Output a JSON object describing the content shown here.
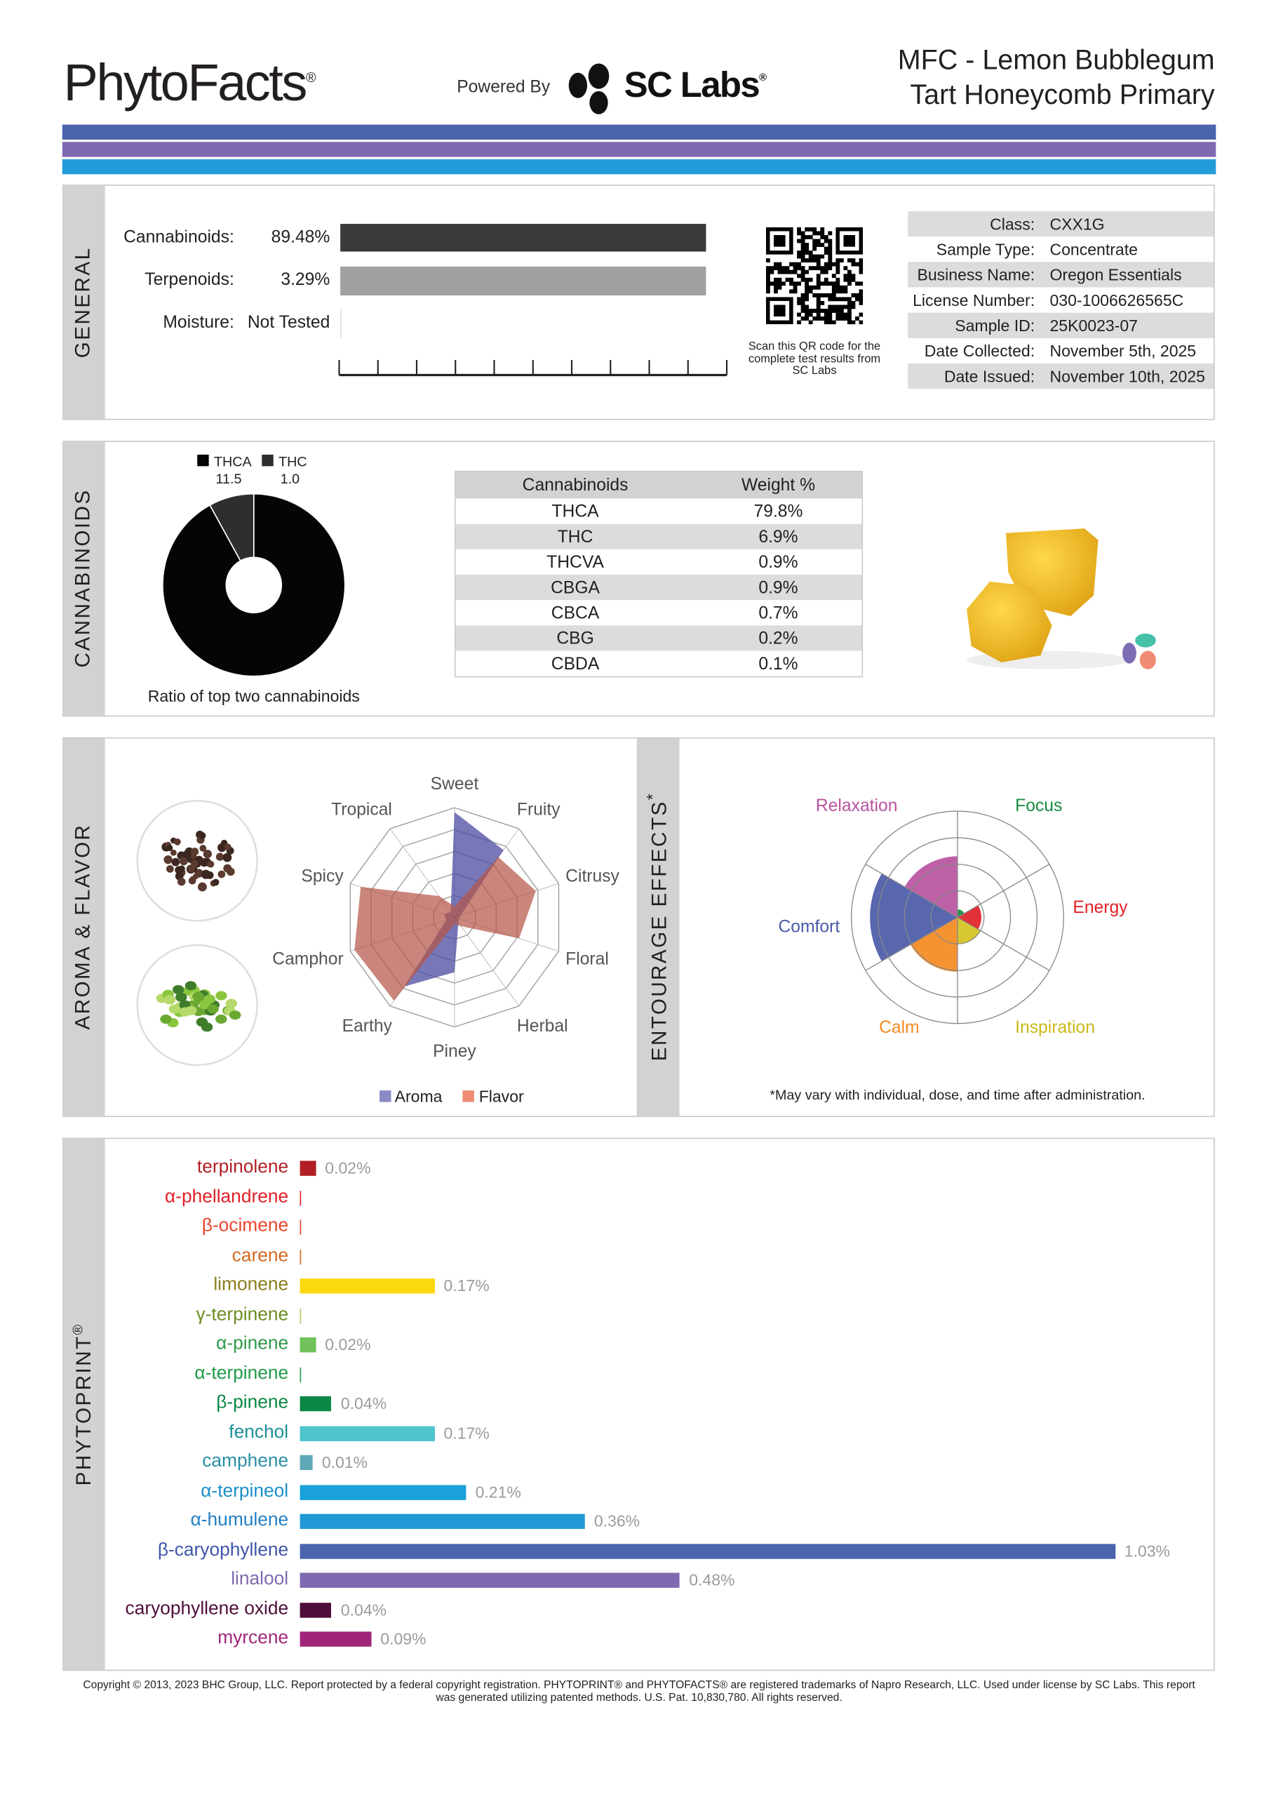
{
  "header": {
    "logo_text": "PhytoFacts",
    "logo_mark": "®",
    "powered_by": "Powered By",
    "partner_logo_text": "SC Labs",
    "partner_logo_mark": "®",
    "title_line1": "MFC - Lemon Bubblegum",
    "title_line2": "Tart Honeycomb Primary",
    "stripe_colors": [
      "#4a64ae",
      "#7f69b0",
      "#219cd9"
    ]
  },
  "general": {
    "section_label": "GENERAL",
    "metrics": [
      {
        "label": "Cannabinoids:",
        "value": "89.48%",
        "fraction": 0.8948,
        "color": "#3a3a3a"
      },
      {
        "label": "Terpenoids:",
        "value": "3.29%",
        "fraction": 0.0329,
        "color": "#a0a0a0"
      },
      {
        "label": "Moisture:",
        "value": "Not Tested",
        "fraction": 0,
        "color": "#d0d0d0"
      }
    ],
    "qr_caption": "Scan this QR code for the complete test results from SC Labs",
    "info": [
      {
        "label": "Class:",
        "value": "CXX1G"
      },
      {
        "label": "Sample Type:",
        "value": "Concentrate"
      },
      {
        "label": "Business Name:",
        "value": "Oregon Essentials"
      },
      {
        "label": "License Number:",
        "value": "030-1006626565C"
      },
      {
        "label": "Sample ID:",
        "value": "25K0023-07"
      },
      {
        "label": "Date Collected:",
        "value": "November 5th, 2025"
      },
      {
        "label": "Date Issued:",
        "value": "November 10th, 2025"
      }
    ]
  },
  "cannabinoids": {
    "section_label": "CANNABINOIDS",
    "donut_caption": "Ratio of top two cannabinoids",
    "legend": [
      {
        "name": "THCA",
        "ratio": "11.5",
        "value": 11.5,
        "color": "#050505"
      },
      {
        "name": "THC",
        "ratio": "1.0",
        "value": 1.0,
        "color": "#2e2e2e"
      }
    ],
    "table_headers": [
      "Cannabinoids",
      "Weight %"
    ],
    "rows": [
      [
        "THCA",
        "79.8%"
      ],
      [
        "THC",
        "6.9%"
      ],
      [
        "THCVA",
        "0.9%"
      ],
      [
        "CBGA",
        "0.9%"
      ],
      [
        "CBCA",
        "0.7%"
      ],
      [
        "CBG",
        "0.2%"
      ],
      [
        "CBDA",
        "0.1%"
      ]
    ]
  },
  "chart_data": [
    {
      "type": "radar",
      "axes": [
        "Sweet",
        "Fruity",
        "Citrusy",
        "Floral",
        "Herbal",
        "Piney",
        "Earthy",
        "Camphor",
        "Spicy",
        "Tropical"
      ],
      "rlim": [
        0,
        5
      ],
      "series": [
        {
          "name": "Aroma",
          "color": "#6e6db0",
          "values": [
            4.8,
            3.8,
            0.3,
            0.2,
            0.3,
            2.5,
            3.9,
            0.4,
            0.5,
            0.3
          ]
        },
        {
          "name": "Flavor",
          "color": "#e8836a",
          "values": [
            0.5,
            3.4,
            3.9,
            3.1,
            0.5,
            0.3,
            4.7,
            4.8,
            4.5,
            1.2
          ]
        }
      ],
      "legend": "bottom"
    },
    {
      "type": "polar-area",
      "rlim": [
        0,
        4
      ],
      "categories": [
        "Focus",
        "Energy",
        "Inspiration",
        "Calm",
        "Comfort",
        "Relaxation"
      ],
      "values": [
        0.3,
        0.9,
        1.0,
        2.05,
        3.3,
        2.3
      ],
      "colors": [
        "#1a8a3e",
        "#e02026",
        "#d4c321",
        "#f58a1f",
        "#4b5aa8",
        "#b9529f"
      ]
    },
    {
      "type": "bar",
      "orientation": "horizontal",
      "unit": "%",
      "categories": [
        "terpinolene",
        "α-phellandrene",
        "β-ocimene",
        "carene",
        "limonene",
        "γ-terpinene",
        "α-pinene",
        "α-terpinene",
        "β-pinene",
        "fenchol",
        "camphene",
        "α-terpineol",
        "α-humulene",
        "β-caryophyllene",
        "linalool",
        "caryophyllene oxide",
        "myrcene"
      ],
      "values": [
        0.02,
        0,
        0,
        0,
        0.17,
        0,
        0.02,
        0,
        0.04,
        0.17,
        0.01,
        0.21,
        0.36,
        1.03,
        0.48,
        0.04,
        0.09
      ],
      "value_labels": [
        "0.02%",
        "",
        "",
        "",
        "0.17%",
        "",
        "0.02%",
        "",
        "0.04%",
        "0.17%",
        "0.01%",
        "0.21%",
        "0.36%",
        "1.03%",
        "0.48%",
        "0.04%",
        "0.09%"
      ],
      "label_colors": [
        "#b11f24",
        "#e21f26",
        "#e9452c",
        "#d26b23",
        "#8a7d1a",
        "#6b8e23",
        "#2e9a47",
        "#1f9a47",
        "#0a8744",
        "#1c8f99",
        "#2a8fa6",
        "#1a8fc8",
        "#2480c4",
        "#3e55a8",
        "#7f69b0",
        "#4e0e3a",
        "#a0267a"
      ],
      "bar_colors": [
        "#b11f24",
        "#e21f26",
        "#e9452c",
        "#d26b23",
        "#fcd80f",
        "#b7c35a",
        "#73c15b",
        "#1f9a47",
        "#0a8744",
        "#4fc4cb",
        "#5fa8b8",
        "#1aa0da",
        "#2299d6",
        "#4a64ae",
        "#7f69b0",
        "#4e0e3a",
        "#a0267a"
      ]
    }
  ],
  "aroma": {
    "section_label": "AROMA & FLAVOR",
    "legend": [
      "Aroma",
      "Flavor"
    ]
  },
  "entourage": {
    "section_label": "ENTOURAGE EFFECTS",
    "label_mark": "*",
    "footnote": "*May vary with individual, dose, and time after administration."
  },
  "phytoprint": {
    "section_label": "PHYTOPRINT",
    "label_mark": "®"
  },
  "footer": {
    "line1": "Copyright © 2013, 2023 BHC Group, LLC. Report protected by a federal copyright registration. PHYTOPRINT® and PHYTOFACTS® are registered trademarks of Napro Research, LLC. Used under license by SC Labs. This report",
    "line2": "was generated utilizing patented methods. U.S. Pat. 10,830,780. All rights reserved."
  }
}
